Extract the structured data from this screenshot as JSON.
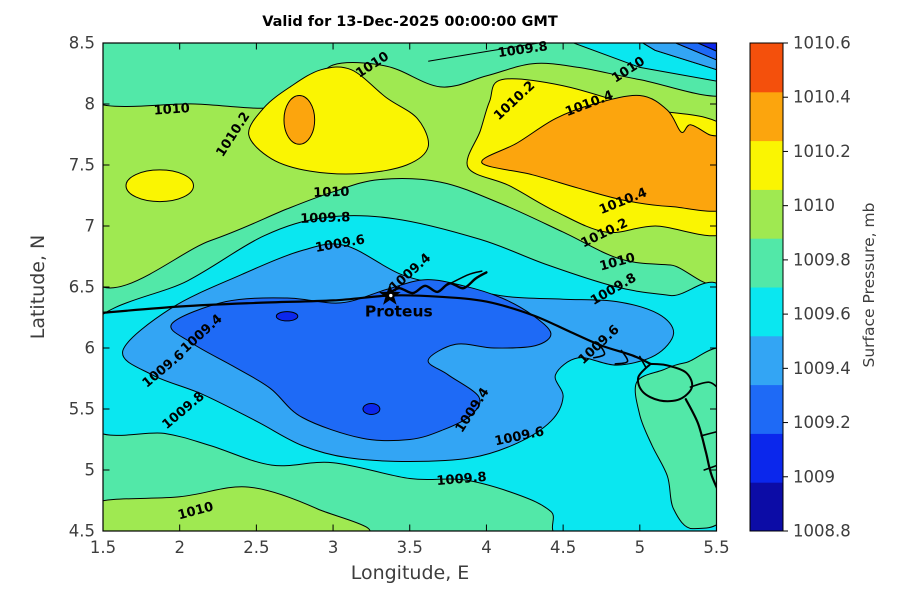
{
  "title": "Valid for 13-Dec-2025 00:00:00 GMT",
  "axes": {
    "xlabel": "Longitude, E",
    "ylabel": "Latitude, N",
    "xlim": [
      1.5,
      5.5
    ],
    "ylim": [
      4.5,
      8.5
    ],
    "xticks": [
      "1.5",
      "2",
      "2.5",
      "3",
      "3.5",
      "4",
      "4.5",
      "5",
      "5.5"
    ],
    "yticks": [
      "4.5",
      "5",
      "5.5",
      "6",
      "6.5",
      "7",
      "7.5",
      "8",
      "8.5"
    ]
  },
  "colorbar": {
    "label": "Surface Pressure, mb",
    "ticks": [
      "1008.8",
      "1009",
      "1009.2",
      "1009.4",
      "1009.6",
      "1009.8",
      "1010",
      "1010.2",
      "1010.4",
      "1010.6"
    ],
    "colors": [
      "#0C0CA6",
      "#0B27EC",
      "#1E6AF6",
      "#33A5F4",
      "#0AE7F0",
      "#52E8A8",
      "#9FE951",
      "#FAF502",
      "#FCA50D",
      "#F4500C"
    ]
  },
  "marker": {
    "label": "Proteus",
    "lon": 3.37,
    "lat": 6.43
  },
  "chart_data": {
    "type": "contour",
    "title": "Valid for 13-Dec-2025 00:00:00 GMT",
    "xlabel": "Longitude, E",
    "ylabel": "Latitude, N",
    "zlabel": "Surface Pressure, mb",
    "xlim": [
      1.5,
      5.5
    ],
    "ylim": [
      4.5,
      8.5
    ],
    "pressure_range_mb": [
      1008.8,
      1010.6
    ],
    "contour_interval_mb": 0.2,
    "levels_mb": [
      1008.8,
      1009.0,
      1009.2,
      1009.4,
      1009.6,
      1009.8,
      1010.0,
      1010.2,
      1010.4,
      1010.6
    ],
    "features": {
      "low_center": {
        "lon": 5.5,
        "lat": 8.5,
        "value_mb": 1008.9,
        "note": "sharp low in NE corner"
      },
      "central_trough": {
        "lon": 3.3,
        "lat": 5.8,
        "value_mb": 1009.1,
        "note": "broad low band around marker"
      },
      "high_center": {
        "lon": 4.8,
        "lat": 7.6,
        "value_mb": 1010.5,
        "note": "orange ridge in upper right"
      },
      "secondary_high": {
        "lon": 2.78,
        "lat": 7.87,
        "value_mb": 1010.45
      }
    },
    "marker": {
      "label": "Proteus",
      "lon": 3.37,
      "lat": 6.43
    },
    "contour_labels": [
      {
        "text": "1010",
        "lon": 1.95,
        "lat": 7.96,
        "rot": -4
      },
      {
        "text": "1010.2",
        "lon": 2.37,
        "lat": 7.77,
        "rot": -57
      },
      {
        "text": "1010",
        "lon": 3.27,
        "lat": 8.33,
        "rot": -33
      },
      {
        "text": "1009.8",
        "lon": 4.24,
        "lat": 8.45,
        "rot": -8
      },
      {
        "text": "1010",
        "lon": 4.94,
        "lat": 8.29,
        "rot": -33
      },
      {
        "text": "1010.2",
        "lon": 4.2,
        "lat": 8.04,
        "rot": -43
      },
      {
        "text": "1010.4",
        "lon": 4.68,
        "lat": 8.01,
        "rot": -21
      },
      {
        "text": "1010.4",
        "lon": 4.9,
        "lat": 7.21,
        "rot": -22
      },
      {
        "text": "1010.2",
        "lon": 4.78,
        "lat": 6.95,
        "rot": -26
      },
      {
        "text": "1010",
        "lon": 4.86,
        "lat": 6.71,
        "rot": -15
      },
      {
        "text": "1009.8",
        "lon": 4.84,
        "lat": 6.49,
        "rot": -30
      },
      {
        "text": "1009.6",
        "lon": 4.75,
        "lat": 6.04,
        "rot": -43
      },
      {
        "text": "1010",
        "lon": 2.99,
        "lat": 7.28,
        "rot": -2
      },
      {
        "text": "1009.8",
        "lon": 2.95,
        "lat": 7.07,
        "rot": -2
      },
      {
        "text": "1009.6",
        "lon": 3.05,
        "lat": 6.86,
        "rot": -10
      },
      {
        "text": "1009.4",
        "lon": 3.52,
        "lat": 6.63,
        "rot": -42
      },
      {
        "text": "1009.4",
        "lon": 2.16,
        "lat": 6.13,
        "rot": -42
      },
      {
        "text": "1009.6",
        "lon": 1.91,
        "lat": 5.84,
        "rot": -40
      },
      {
        "text": "1009.8",
        "lon": 2.04,
        "lat": 5.5,
        "rot": -40
      },
      {
        "text": "1009.4",
        "lon": 3.93,
        "lat": 5.51,
        "rot": -57
      },
      {
        "text": "1009.6",
        "lon": 4.22,
        "lat": 5.28,
        "rot": -12
      },
      {
        "text": "1009.8",
        "lon": 3.84,
        "lat": 4.93,
        "rot": -5
      },
      {
        "text": "1010",
        "lon": 2.11,
        "lat": 4.67,
        "rot": -15
      }
    ]
  }
}
